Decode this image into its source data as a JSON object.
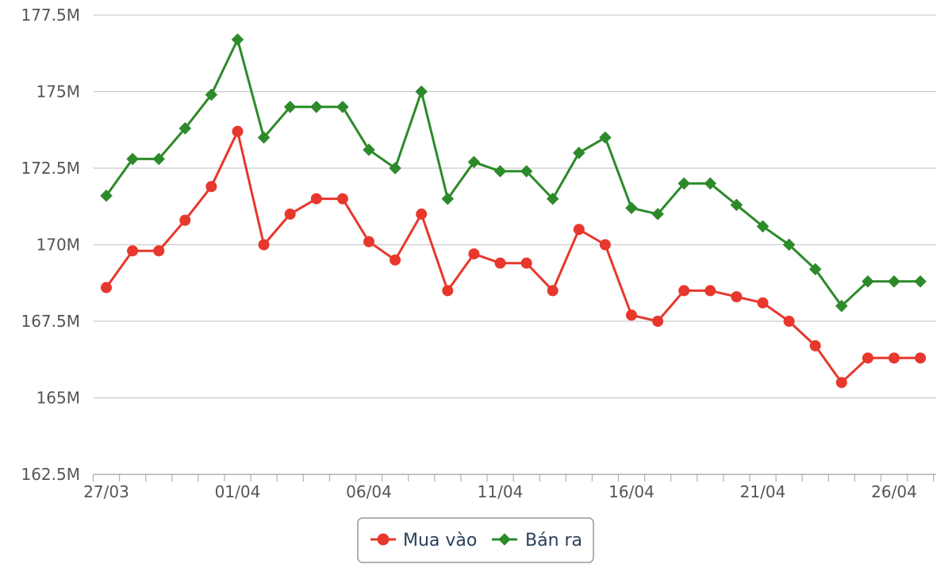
{
  "chart_data": {
    "type": "line",
    "title": "",
    "xlabel": "",
    "ylabel": "",
    "ylim": [
      162.5,
      177.5
    ],
    "yticks": [
      162.5,
      165,
      167.5,
      170,
      172.5,
      175,
      177.5
    ],
    "ytick_labels": [
      "162.5M",
      "165M",
      "167.5M",
      "170M",
      "172.5M",
      "175M",
      "177.5M"
    ],
    "x": [
      "27/03",
      "28/03",
      "29/03",
      "30/03",
      "31/03",
      "01/04",
      "02/04",
      "03/04",
      "04/04",
      "05/04",
      "06/04",
      "07/04",
      "08/04",
      "09/04",
      "10/04",
      "11/04",
      "12/04",
      "13/04",
      "14/04",
      "15/04",
      "16/04",
      "17/04",
      "18/04",
      "19/04",
      "20/04",
      "21/04",
      "22/04",
      "23/04",
      "24/04",
      "25/04",
      "26/04",
      "27/04"
    ],
    "xtick_labels": [
      "27/03",
      "01/04",
      "06/04",
      "11/04",
      "16/04",
      "21/04",
      "26/04"
    ],
    "grid": true,
    "legend_position": "bottom-center",
    "series": [
      {
        "name": "Mua vào",
        "color": "#e8372c",
        "marker": "circle",
        "values": [
          168.6,
          169.8,
          169.8,
          170.8,
          171.9,
          173.7,
          170.0,
          171.0,
          171.5,
          171.5,
          170.1,
          169.5,
          171.0,
          168.5,
          169.7,
          169.4,
          169.4,
          168.5,
          170.5,
          170.0,
          167.7,
          167.5,
          168.5,
          168.5,
          168.3,
          168.1,
          167.5,
          166.7,
          165.5,
          166.3,
          166.3,
          166.3
        ]
      },
      {
        "name": "Bán ra",
        "color": "#2c8a2a",
        "marker": "diamond",
        "values": [
          171.6,
          172.8,
          172.8,
          173.8,
          174.9,
          176.7,
          173.5,
          174.5,
          174.5,
          174.5,
          173.1,
          172.5,
          175.0,
          171.5,
          172.7,
          172.4,
          172.4,
          171.5,
          173.0,
          173.5,
          171.2,
          171.0,
          172.0,
          172.0,
          171.3,
          170.6,
          170.0,
          169.2,
          168.0,
          168.8,
          168.8,
          168.8
        ]
      }
    ]
  }
}
